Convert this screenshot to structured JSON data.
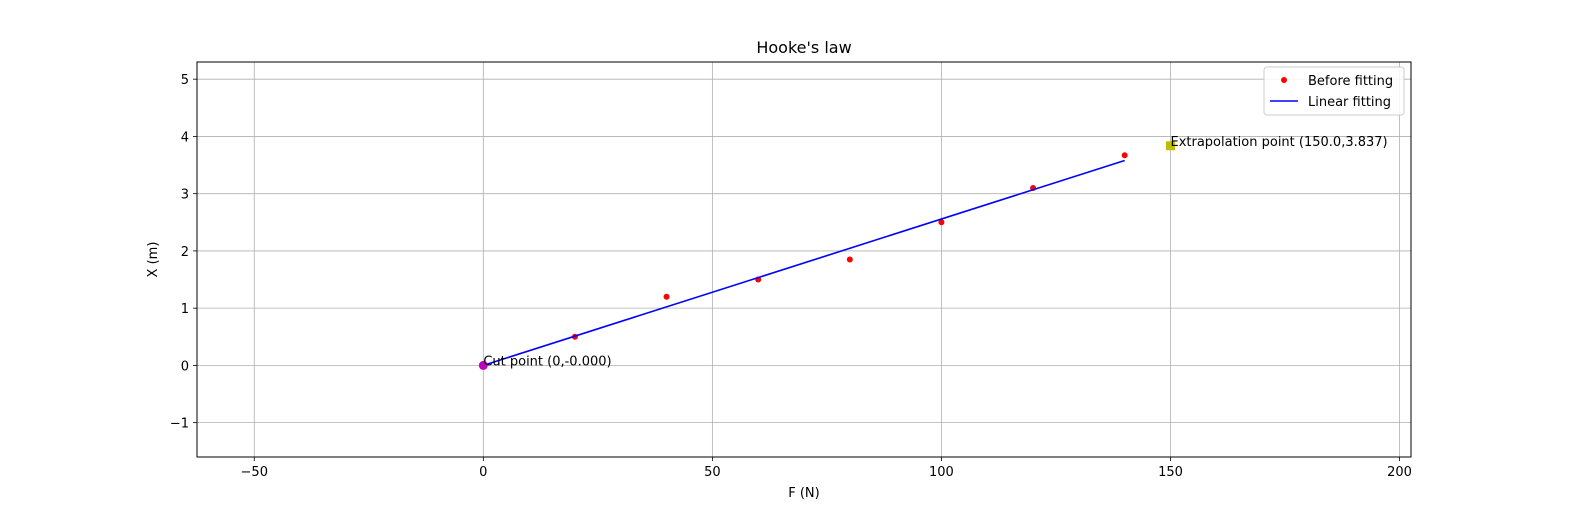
{
  "chart_data": {
    "type": "scatter",
    "title": "Hooke's law",
    "xlabel": "F (N)",
    "ylabel": "X (m)",
    "xlim": [
      -62.5,
      202.5
    ],
    "ylim": [
      -1.6,
      5.3
    ],
    "xticks": [
      -50,
      0,
      50,
      100,
      150,
      200
    ],
    "yticks": [
      -1,
      0,
      1,
      2,
      3,
      4,
      5
    ],
    "grid": true,
    "legend_position": "top-right",
    "series": [
      {
        "name": "Before fitting",
        "kind": "points",
        "color": "#ff0000",
        "x": [
          20,
          40,
          60,
          80,
          100,
          120,
          140
        ],
        "y": [
          0.5,
          1.2,
          1.5,
          1.85,
          2.5,
          3.1,
          3.67
        ]
      },
      {
        "name": "Linear fitting",
        "kind": "line",
        "color": "#0000ff",
        "x": [
          0,
          140
        ],
        "y": [
          0,
          3.58
        ]
      }
    ],
    "special_points": [
      {
        "x": 0,
        "y": 0,
        "color": "#bf00bf",
        "marker": "circle",
        "label": "Cut point (0,-0.000)"
      },
      {
        "x": 150,
        "y": 3.837,
        "color": "#bfbf00",
        "marker": "square",
        "label": "Extrapolation point (150.0,3.837)"
      }
    ]
  }
}
